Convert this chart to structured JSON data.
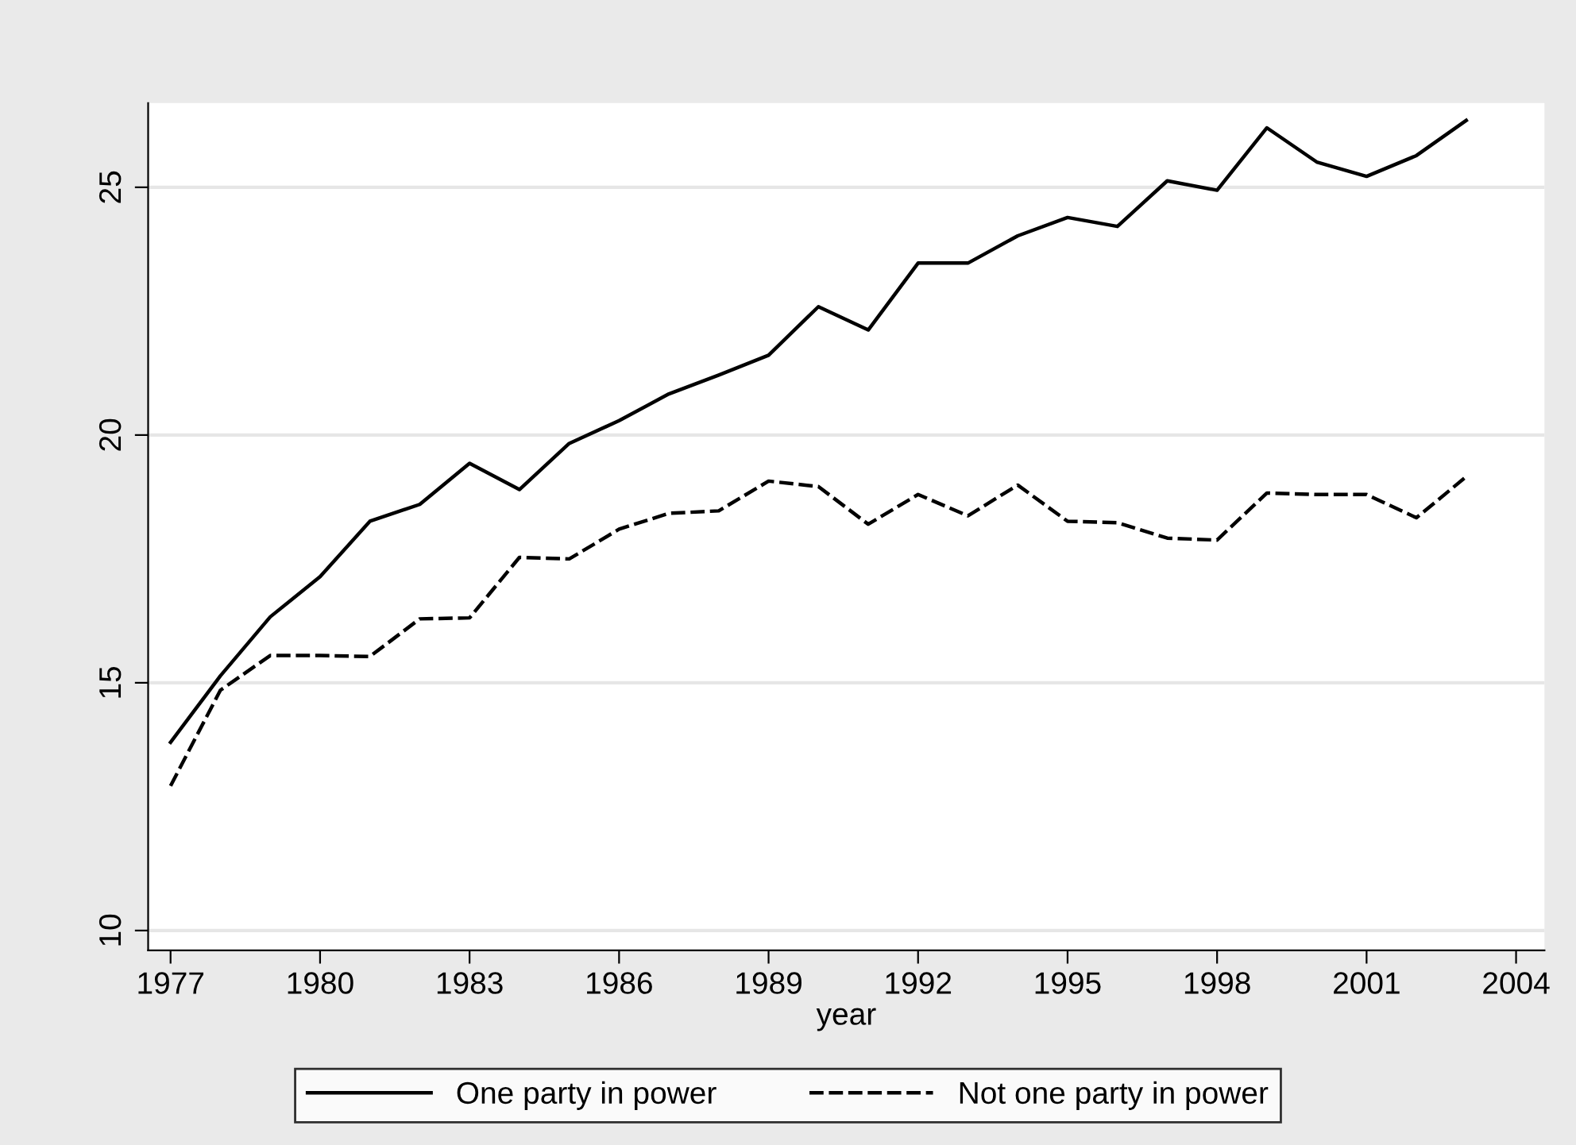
{
  "chart_data": {
    "type": "line",
    "xlabel": "year",
    "x": [
      1977,
      1978,
      1979,
      1980,
      1981,
      1982,
      1983,
      1984,
      1985,
      1986,
      1987,
      1988,
      1989,
      1990,
      1991,
      1992,
      1993,
      1994,
      1995,
      1996,
      1997,
      1998,
      1999,
      2000,
      2001,
      2002,
      2003
    ],
    "series": [
      {
        "name": "One party in power",
        "color": "#000000",
        "line_style": "solid",
        "values": [
          13.8,
          15.14,
          16.33,
          17.14,
          18.26,
          18.6,
          19.43,
          18.9,
          19.83,
          20.29,
          20.83,
          21.21,
          21.61,
          22.59,
          22.12,
          23.47,
          23.47,
          24.02,
          24.39,
          24.21,
          25.13,
          24.94,
          26.2,
          25.51,
          25.22,
          25.64,
          26.35
        ]
      },
      {
        "name": "Not one party in power",
        "color": "#000000",
        "line_style": "dashed",
        "values": [
          12.92,
          14.85,
          15.55,
          15.55,
          15.53,
          16.29,
          16.31,
          17.53,
          17.5,
          18.1,
          18.42,
          18.47,
          19.07,
          18.96,
          18.2,
          18.8,
          18.37,
          18.99,
          18.26,
          18.23,
          17.92,
          17.88,
          18.83,
          18.8,
          18.8,
          18.33,
          19.16
        ]
      }
    ],
    "xlim": [
      1976.55,
      2004.57
    ],
    "xticks": [
      1977,
      1980,
      1983,
      1986,
      1989,
      1992,
      1995,
      1998,
      2001,
      2004
    ],
    "ylim": [
      9.6,
      26.7
    ],
    "yticks": [
      10,
      15,
      20,
      25
    ],
    "grid": "y",
    "legend": "bottom"
  }
}
